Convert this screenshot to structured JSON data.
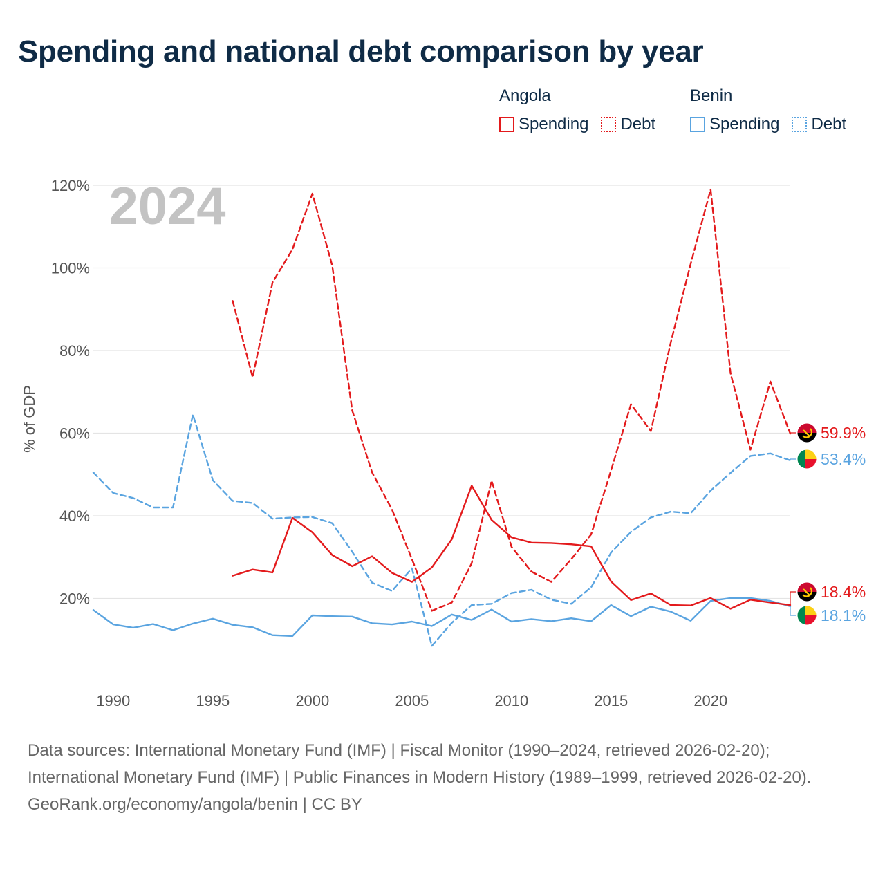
{
  "title": "Spending and national debt comparison by year",
  "legend": {
    "groups": [
      {
        "country": "Angola",
        "color": "#e31a1c",
        "items": [
          {
            "label": "Spending",
            "style": "solid"
          },
          {
            "label": "Debt",
            "style": "dotted"
          }
        ]
      },
      {
        "country": "Benin",
        "color": "#5aa4e0",
        "items": [
          {
            "label": "Spending",
            "style": "solid"
          },
          {
            "label": "Debt",
            "style": "dotted"
          }
        ]
      }
    ]
  },
  "footer": {
    "sources": "Data sources: International Monetary Fund (IMF) | Fiscal Monitor (1990–2024, retrieved 2026-02-20); International Monetary Fund (IMF) | Public Finances in Modern History (1989–1999, retrieved 2026-02-20).",
    "credit": "GeoRank.org/economy/angola/benin | CC BY"
  },
  "chart_data": {
    "type": "line",
    "title": "Spending and national debt comparison by year",
    "ylabel": "% of GDP",
    "xlabel": "",
    "year_watermark": "2024",
    "xlim": [
      1989,
      2024
    ],
    "ylim": [
      0,
      120
    ],
    "x_ticks": [
      1990,
      1995,
      2000,
      2005,
      2010,
      2015,
      2020
    ],
    "y_ticks": [
      20,
      40,
      60,
      80,
      100,
      120
    ],
    "y_tick_labels": [
      "20%",
      "40%",
      "60%",
      "80%",
      "100%",
      "120%"
    ],
    "series": [
      {
        "name": "Angola Debt",
        "country": "Angola",
        "metric": "Debt",
        "color": "#e31a1c",
        "dashed": true,
        "x": [
          1996,
          1997,
          1998,
          1999,
          2000,
          2001,
          2002,
          2003,
          2004,
          2005,
          2006,
          2007,
          2008,
          2009,
          2010,
          2011,
          2012,
          2013,
          2014,
          2015,
          2016,
          2017,
          2018,
          2019,
          2020,
          2021,
          2022,
          2023,
          2024
        ],
        "values": [
          92.0,
          73.5,
          96.5,
          104.5,
          118.0,
          100.5,
          65.5,
          50.5,
          41.5,
          29.5,
          17.0,
          19.0,
          28.5,
          48.5,
          32.5,
          26.5,
          24.0,
          29.5,
          35.5,
          51.0,
          67.0,
          60.5,
          82.0,
          101.0,
          119.0,
          74.5,
          56.0,
          72.5,
          59.9
        ]
      },
      {
        "name": "Angola Spending",
        "country": "Angola",
        "metric": "Spending",
        "color": "#e31a1c",
        "dashed": false,
        "x": [
          1996,
          1997,
          1998,
          1999,
          2000,
          2001,
          2002,
          2003,
          2004,
          2005,
          2006,
          2007,
          2008,
          2009,
          2010,
          2011,
          2012,
          2013,
          2014,
          2015,
          2016,
          2017,
          2018,
          2019,
          2020,
          2021,
          2022,
          2023,
          2024
        ],
        "values": [
          25.5,
          27.0,
          26.3,
          39.5,
          36.0,
          30.5,
          27.8,
          30.2,
          26.2,
          24.0,
          27.5,
          34.3,
          47.3,
          39.0,
          34.8,
          33.5,
          33.4,
          33.1,
          32.6,
          24.1,
          19.6,
          21.2,
          18.4,
          18.3,
          20.1,
          17.5,
          19.7,
          19.0,
          18.4
        ]
      },
      {
        "name": "Benin Debt",
        "country": "Benin",
        "metric": "Debt",
        "color": "#5aa4e0",
        "dashed": true,
        "x": [
          1989,
          1990,
          1991,
          1992,
          1993,
          1994,
          1995,
          1996,
          1997,
          1998,
          1999,
          2000,
          2001,
          2002,
          2003,
          2004,
          2005,
          2006,
          2007,
          2008,
          2009,
          2010,
          2011,
          2012,
          2013,
          2014,
          2015,
          2016,
          2017,
          2018,
          2019,
          2020,
          2021,
          2022,
          2023,
          2024
        ],
        "values": [
          50.5,
          45.5,
          44.3,
          42.0,
          42.0,
          64.5,
          48.6,
          43.6,
          43.1,
          39.3,
          39.6,
          39.7,
          38.2,
          31.3,
          23.8,
          21.8,
          27.3,
          8.5,
          14.1,
          18.4,
          18.7,
          21.3,
          22.1,
          19.7,
          18.7,
          22.7,
          31.1,
          36.1,
          39.6,
          41.0,
          40.6,
          46.1,
          50.4,
          54.5,
          55.1,
          53.4
        ]
      },
      {
        "name": "Benin Spending",
        "country": "Benin",
        "metric": "Spending",
        "color": "#5aa4e0",
        "dashed": false,
        "x": [
          1989,
          1990,
          1991,
          1992,
          1993,
          1994,
          1995,
          1996,
          1997,
          1998,
          1999,
          2000,
          2001,
          2002,
          2003,
          2004,
          2005,
          2006,
          2007,
          2008,
          2009,
          2010,
          2011,
          2012,
          2013,
          2014,
          2015,
          2016,
          2017,
          2018,
          2019,
          2020,
          2021,
          2022,
          2023,
          2024
        ],
        "values": [
          17.2,
          13.7,
          12.9,
          13.8,
          12.3,
          13.9,
          15.1,
          13.6,
          13.0,
          11.1,
          10.9,
          15.9,
          15.7,
          15.6,
          14.0,
          13.7,
          14.4,
          13.3,
          16.1,
          14.8,
          17.3,
          14.4,
          15.0,
          14.5,
          15.2,
          14.5,
          18.4,
          15.7,
          18.0,
          16.8,
          14.6,
          19.4,
          20.1,
          20.1,
          19.4,
          18.1
        ]
      }
    ],
    "end_labels": [
      {
        "country": "Angola",
        "metric": "Debt",
        "value": 59.9,
        "text": "59.9%",
        "color": "#e31a1c"
      },
      {
        "country": "Benin",
        "metric": "Debt",
        "value": 53.4,
        "text": "53.4%",
        "color": "#5aa4e0"
      },
      {
        "country": "Angola",
        "metric": "Spending",
        "value": 18.4,
        "text": "18.4%",
        "color": "#e31a1c"
      },
      {
        "country": "Benin",
        "metric": "Spending",
        "value": 18.1,
        "text": "18.1%",
        "color": "#5aa4e0"
      }
    ]
  }
}
